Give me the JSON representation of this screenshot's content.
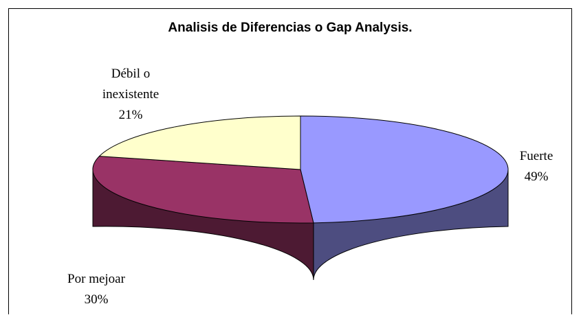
{
  "chart_data": {
    "type": "pie",
    "title": "Analisis de Diferencias o Gap Analysis.",
    "categories": [
      "Fuerte",
      "Por mejoar",
      "Débil o inexistente"
    ],
    "values": [
      49,
      30,
      21
    ],
    "value_labels": [
      "49%",
      "30%",
      "21%"
    ],
    "colors": [
      "#9999ff",
      "#993366",
      "#ffffcc"
    ]
  }
}
